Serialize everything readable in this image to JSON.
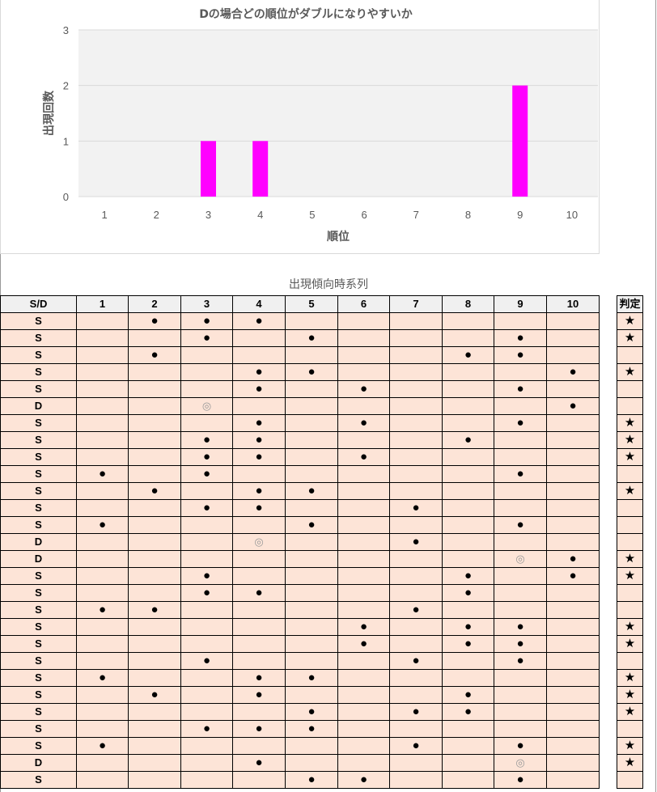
{
  "chart_data": {
    "type": "bar",
    "title": "Dの場合どの順位がダブルになりやすいか",
    "xlabel": "順位",
    "ylabel": "出現回数",
    "categories": [
      "1",
      "2",
      "3",
      "4",
      "5",
      "6",
      "7",
      "8",
      "9",
      "10"
    ],
    "values": [
      0,
      0,
      1,
      1,
      0,
      0,
      0,
      0,
      2,
      0
    ],
    "ylim": [
      0,
      3
    ],
    "yticks": [
      0,
      1,
      2,
      3
    ],
    "grid": true,
    "color": "#ff00ff",
    "plot_bg": "#f2f2f2"
  },
  "table": {
    "title": "出現傾向時系列",
    "headers": [
      "S/D",
      "1",
      "2",
      "3",
      "4",
      "5",
      "6",
      "7",
      "8",
      "9",
      "10"
    ],
    "judge_header": "判定",
    "rows": [
      {
        "sd": "S",
        "m": [
          "",
          "●",
          "●",
          "●",
          "",
          "",
          "",
          "",
          "",
          ""
        ],
        "j": "★"
      },
      {
        "sd": "S",
        "m": [
          "",
          "",
          "●",
          "",
          "●",
          "",
          "",
          "",
          "●",
          ""
        ],
        "j": "★"
      },
      {
        "sd": "S",
        "m": [
          "",
          "●",
          "",
          "",
          "",
          "",
          "",
          "●",
          "●",
          ""
        ],
        "j": ""
      },
      {
        "sd": "S",
        "m": [
          "",
          "",
          "",
          "●",
          "●",
          "",
          "",
          "",
          "",
          "●"
        ],
        "j": "★"
      },
      {
        "sd": "S",
        "m": [
          "",
          "",
          "",
          "●",
          "",
          "●",
          "",
          "",
          "●",
          ""
        ],
        "j": ""
      },
      {
        "sd": "D",
        "m": [
          "",
          "",
          "◎",
          "",
          "",
          "",
          "",
          "",
          "",
          "●"
        ],
        "j": ""
      },
      {
        "sd": "S",
        "m": [
          "",
          "",
          "",
          "●",
          "",
          "●",
          "",
          "",
          "●",
          ""
        ],
        "j": "★"
      },
      {
        "sd": "S",
        "m": [
          "",
          "",
          "●",
          "●",
          "",
          "",
          "",
          "●",
          "",
          ""
        ],
        "j": "★"
      },
      {
        "sd": "S",
        "m": [
          "",
          "",
          "●",
          "●",
          "",
          "●",
          "",
          "",
          "",
          ""
        ],
        "j": "★"
      },
      {
        "sd": "S",
        "m": [
          "●",
          "",
          "●",
          "",
          "",
          "",
          "",
          "",
          "●",
          ""
        ],
        "j": ""
      },
      {
        "sd": "S",
        "m": [
          "",
          "●",
          "",
          "●",
          "●",
          "",
          "",
          "",
          "",
          ""
        ],
        "j": "★"
      },
      {
        "sd": "S",
        "m": [
          "",
          "",
          "●",
          "●",
          "",
          "",
          "●",
          "",
          "",
          ""
        ],
        "j": ""
      },
      {
        "sd": "S",
        "m": [
          "●",
          "",
          "",
          "",
          "●",
          "",
          "",
          "",
          "●",
          ""
        ],
        "j": ""
      },
      {
        "sd": "D",
        "m": [
          "",
          "",
          "",
          "◎",
          "",
          "",
          "●",
          "",
          "",
          ""
        ],
        "j": ""
      },
      {
        "sd": "D",
        "m": [
          "",
          "",
          "",
          "",
          "",
          "",
          "",
          "",
          "◎",
          "●"
        ],
        "j": "★"
      },
      {
        "sd": "S",
        "m": [
          "",
          "",
          "●",
          "",
          "",
          "",
          "",
          "●",
          "",
          "●"
        ],
        "j": "★"
      },
      {
        "sd": "S",
        "m": [
          "",
          "",
          "●",
          "●",
          "",
          "",
          "",
          "●",
          "",
          ""
        ],
        "j": ""
      },
      {
        "sd": "S",
        "m": [
          "●",
          "●",
          "",
          "",
          "",
          "",
          "●",
          "",
          "",
          ""
        ],
        "j": ""
      },
      {
        "sd": "S",
        "m": [
          "",
          "",
          "",
          "",
          "",
          "●",
          "",
          "●",
          "●",
          ""
        ],
        "j": "★"
      },
      {
        "sd": "S",
        "m": [
          "",
          "",
          "",
          "",
          "",
          "●",
          "",
          "●",
          "●",
          ""
        ],
        "j": "★"
      },
      {
        "sd": "S",
        "m": [
          "",
          "",
          "●",
          "",
          "",
          "",
          "●",
          "",
          "●",
          ""
        ],
        "j": ""
      },
      {
        "sd": "S",
        "m": [
          "●",
          "",
          "",
          "●",
          "●",
          "",
          "",
          "",
          "",
          ""
        ],
        "j": "★"
      },
      {
        "sd": "S",
        "m": [
          "",
          "●",
          "",
          "●",
          "",
          "",
          "",
          "●",
          "",
          ""
        ],
        "j": "★"
      },
      {
        "sd": "S",
        "m": [
          "",
          "",
          "",
          "",
          "●",
          "",
          "●",
          "●",
          "",
          ""
        ],
        "j": "★"
      },
      {
        "sd": "S",
        "m": [
          "",
          "",
          "●",
          "●",
          "●",
          "",
          "",
          "",
          "",
          ""
        ],
        "j": ""
      },
      {
        "sd": "S",
        "m": [
          "●",
          "",
          "",
          "",
          "",
          "",
          "●",
          "",
          "●",
          ""
        ],
        "j": "★"
      },
      {
        "sd": "D",
        "m": [
          "",
          "",
          "",
          "●",
          "",
          "",
          "",
          "",
          "◎",
          ""
        ],
        "j": "★"
      },
      {
        "sd": "S",
        "m": [
          "",
          "",
          "",
          "",
          "●",
          "●",
          "",
          "",
          "●",
          ""
        ],
        "j": ""
      }
    ]
  }
}
